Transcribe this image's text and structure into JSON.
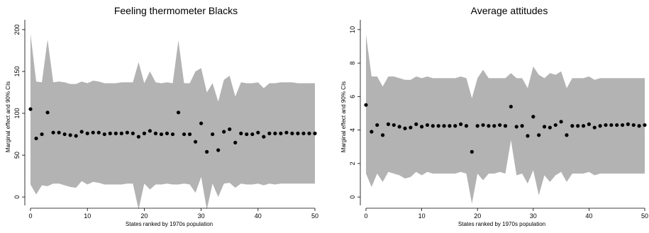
{
  "chart_data": [
    {
      "type": "scatter",
      "title": "Feeling thermometer Blacks",
      "xlabel": "States ranked by 1970s population",
      "ylabel": "Marginal effect and 90% CIs",
      "xlim": [
        0,
        50
      ],
      "ylim": [
        -10,
        210
      ],
      "xticks": [
        0,
        10,
        20,
        30,
        40,
        50
      ],
      "yticks": [
        0,
        50,
        100,
        150,
        200
      ],
      "grid": false,
      "ci_color": "#b3b3b3",
      "point_color": "#000000",
      "series": [
        {
          "x": [
            0,
            1,
            2,
            3,
            4,
            5,
            6,
            7,
            8,
            9,
            10,
            11,
            12,
            13,
            14,
            15,
            16,
            17,
            18,
            19,
            20,
            21,
            22,
            23,
            24,
            25,
            26,
            27,
            28,
            29,
            30,
            31,
            32,
            33,
            34,
            35,
            36,
            37,
            38,
            39,
            40,
            41,
            42,
            43,
            44,
            45,
            46,
            47,
            48,
            49,
            50
          ],
          "y": [
            105,
            70,
            75,
            101,
            77,
            77,
            75,
            74,
            73,
            78,
            76,
            77,
            77,
            75,
            76,
            76,
            76,
            77,
            76,
            72,
            76,
            79,
            76,
            75,
            76,
            75,
            101,
            75,
            75,
            66,
            88,
            54,
            75,
            56,
            78,
            81,
            65,
            76,
            75,
            75,
            77,
            72,
            76,
            76,
            76,
            77,
            76,
            76,
            76,
            76,
            76
          ],
          "lower": [
            15,
            3,
            14,
            13,
            16,
            16,
            14,
            12,
            11,
            19,
            15,
            18,
            17,
            15,
            15,
            15,
            15,
            16,
            16,
            -15,
            16,
            9,
            15,
            15,
            16,
            15,
            15,
            16,
            15,
            5,
            24,
            -15,
            16,
            0,
            16,
            17,
            11,
            16,
            15,
            15,
            16,
            14,
            16,
            15,
            16,
            16,
            16,
            16,
            16,
            16,
            16
          ],
          "upper": [
            195,
            138,
            137,
            188,
            137,
            138,
            137,
            135,
            135,
            138,
            136,
            139,
            138,
            136,
            136,
            136,
            137,
            137,
            137,
            161,
            136,
            150,
            137,
            136,
            137,
            136,
            187,
            136,
            136,
            150,
            154,
            125,
            136,
            114,
            140,
            145,
            120,
            137,
            136,
            136,
            137,
            130,
            136,
            136,
            137,
            137,
            137,
            136,
            136,
            136,
            136
          ]
        }
      ]
    },
    {
      "type": "scatter",
      "title": "Average attitudes",
      "xlabel": "States ranked by 1970s population",
      "ylabel": "Marginal effect and 90% CIs",
      "xlim": [
        0,
        50
      ],
      "ylim": [
        -0.5,
        10.5
      ],
      "xticks": [
        0,
        10,
        20,
        30,
        40,
        50
      ],
      "yticks": [
        0,
        2,
        4,
        6,
        8,
        10
      ],
      "grid": false,
      "ci_color": "#b3b3b3",
      "point_color": "#000000",
      "series": [
        {
          "x": [
            0,
            1,
            2,
            3,
            4,
            5,
            6,
            7,
            8,
            9,
            10,
            11,
            12,
            13,
            14,
            15,
            16,
            17,
            18,
            19,
            20,
            21,
            22,
            23,
            24,
            25,
            26,
            27,
            28,
            29,
            30,
            31,
            32,
            33,
            34,
            35,
            36,
            37,
            38,
            39,
            40,
            41,
            42,
            43,
            44,
            45,
            46,
            47,
            48,
            49,
            50
          ],
          "y": [
            5.5,
            3.9,
            4.3,
            3.7,
            4.35,
            4.3,
            4.2,
            4.1,
            4.15,
            4.35,
            4.2,
            4.3,
            4.25,
            4.25,
            4.25,
            4.25,
            4.25,
            4.35,
            4.25,
            2.7,
            4.25,
            4.3,
            4.25,
            4.25,
            4.3,
            4.25,
            5.4,
            4.2,
            4.25,
            3.65,
            4.8,
            3.7,
            4.2,
            4.15,
            4.3,
            4.5,
            3.7,
            4.25,
            4.25,
            4.25,
            4.35,
            4.15,
            4.25,
            4.3,
            4.3,
            4.3,
            4.3,
            4.35,
            4.3,
            4.25,
            4.3
          ],
          "lower": [
            1.4,
            0.6,
            1.4,
            0.9,
            1.5,
            1.4,
            1.3,
            1.1,
            1.2,
            1.5,
            1.3,
            1.5,
            1.4,
            1.4,
            1.4,
            1.4,
            1.4,
            1.5,
            1.4,
            -0.4,
            1.4,
            1.0,
            1.4,
            1.4,
            1.5,
            1.4,
            3.4,
            1.3,
            1.4,
            0.8,
            1.6,
            0.1,
            1.3,
            0.9,
            1.3,
            1.5,
            0.9,
            1.4,
            1.4,
            1.4,
            1.5,
            1.3,
            1.4,
            1.4,
            1.4,
            1.4,
            1.4,
            1.4,
            1.4,
            1.4,
            1.4
          ],
          "upper": [
            9.7,
            7.2,
            7.2,
            6.6,
            7.2,
            7.2,
            7.1,
            7.0,
            7.0,
            7.2,
            7.1,
            7.2,
            7.1,
            7.1,
            7.1,
            7.1,
            7.1,
            7.2,
            7.1,
            5.9,
            7.1,
            7.6,
            7.1,
            7.1,
            7.1,
            7.1,
            7.4,
            7.1,
            7.1,
            6.5,
            7.8,
            7.3,
            7.1,
            7.4,
            7.3,
            7.5,
            6.5,
            7.1,
            7.1,
            7.1,
            7.2,
            7.0,
            7.1,
            7.1,
            7.1,
            7.1,
            7.1,
            7.1,
            7.1,
            7.1,
            7.1
          ]
        }
      ]
    }
  ]
}
